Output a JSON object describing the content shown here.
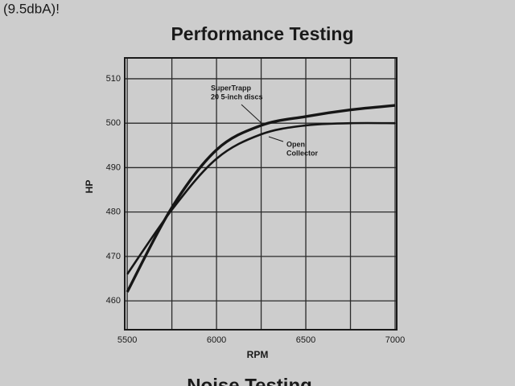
{
  "header_text": "(9.5dbA)!",
  "chart_data": {
    "type": "line",
    "title": "Performance Testing",
    "x_label": "RPM",
    "y_label": "HP",
    "x": [
      5500,
      5750,
      6000,
      6250,
      6500,
      6750,
      7000
    ],
    "series": [
      {
        "name": "SuperTrapp 20 5-inch discs",
        "color": "#161616",
        "values": [
          462,
          481,
          494,
          499.5,
          501.5,
          503,
          504
        ]
      },
      {
        "name": "Open Collector",
        "color": "#161616",
        "values": [
          466,
          480.5,
          492,
          497.5,
          499.5,
          500,
          500
        ]
      }
    ],
    "annotations": [
      [
        "SuperTrapp",
        "20 5-inch discs"
      ],
      [
        "Open",
        "Collector"
      ]
    ],
    "xlim": [
      5486,
      7009
    ],
    "ylim": [
      453.5,
      514.7
    ],
    "xticks": [
      5500,
      6000,
      6500,
      7000
    ],
    "x_minor_ticks": [
      5750,
      6250,
      6750
    ],
    "yticks": [
      460,
      470,
      480,
      490,
      500,
      510
    ],
    "grid": true
  },
  "footer_text": "Noise Testing"
}
